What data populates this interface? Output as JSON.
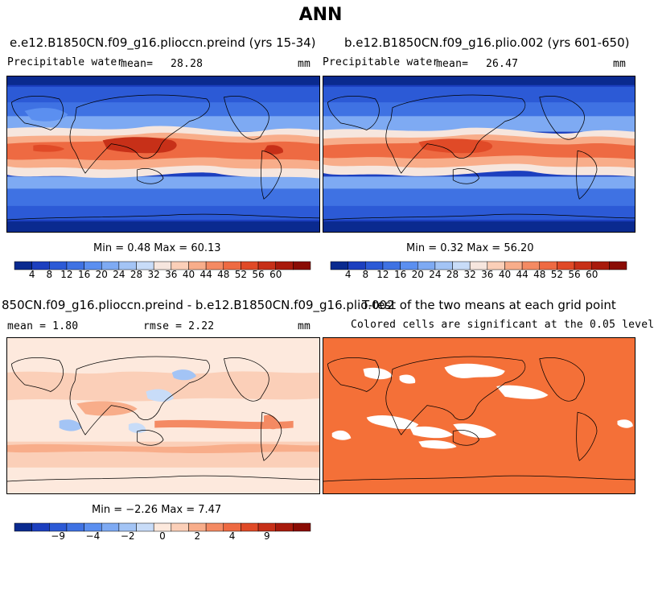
{
  "title": "ANN",
  "panels": [
    {
      "id": "p1",
      "title": "e.e12.B1850CN.f09_g16.pliocсn.preind (yrs 15-34)",
      "variable": "Precipitable water",
      "mean_label": "mean=",
      "mean_value": "28.28",
      "units": "mm",
      "minmax": "Min =   0.48 Max =  60.13"
    },
    {
      "id": "p2",
      "title": "b.e12.B1850CN.f09_g16.plio.002 (yrs 601-650)",
      "variable": "Precipitable water",
      "mean_label": "mean=",
      "mean_value": "26.47",
      "units": "mm",
      "minmax": "Min =   0.32 Max =  56.20"
    },
    {
      "id": "p3",
      "title": "850CN.f09_g16.pliocсn.preind - b.e12.B1850CN.f09_g16.plio.002",
      "mean_text": "mean =    1.80",
      "rmse_text": "rmse =    2.22",
      "units": "mm",
      "minmax": "Min = −2.26 Max =   7.47"
    },
    {
      "id": "p4",
      "title": "T-test of the two means at each grid point",
      "subtitle": "Colored cells are significant at the 0.05 level"
    }
  ],
  "colorbars": {
    "abs": {
      "colors": [
        "#0a2a8f",
        "#1c3fbf",
        "#2c5ad6",
        "#3f72e3",
        "#5b8ff0",
        "#7eaaf3",
        "#a3c4f5",
        "#c8dcf8",
        "#f6e6de",
        "#fbcfb8",
        "#f8ad8a",
        "#f48a63",
        "#ee6a42",
        "#e04a27",
        "#c73018",
        "#a81a0c",
        "#8a0c04"
      ],
      "ticks": [
        "4",
        "8",
        "12",
        "16",
        "20",
        "24",
        "28",
        "32",
        "36",
        "40",
        "44",
        "48",
        "52",
        "56",
        "60"
      ]
    },
    "diff": {
      "colors": [
        "#0a2a8f",
        "#1c3fbf",
        "#2c5ad6",
        "#3f72e3",
        "#5b8ff0",
        "#7eaaf3",
        "#a3c4f5",
        "#c8dcf8",
        "#fde9dd",
        "#fbcfb8",
        "#f8ad8a",
        "#f48a63",
        "#ee6a42",
        "#e04a27",
        "#c73018",
        "#a81a0c",
        "#8a0c04"
      ],
      "ticks": [
        "−9",
        "−4",
        "−2",
        "0",
        "2",
        "4",
        "9"
      ],
      "tick_positions": [
        1.5,
        3.5,
        5.5,
        7.5,
        9.5,
        11.5,
        13.5
      ]
    }
  },
  "chart_data": [
    {
      "type": "heatmap",
      "title": "e.e12.B1850CN.f09_g16.pliocсn.preind (yrs 15-34)",
      "variable": "Precipitable water",
      "units": "mm",
      "mean": 28.28,
      "min": 0.48,
      "max": 60.13,
      "levels": [
        4,
        8,
        12,
        16,
        20,
        24,
        28,
        32,
        36,
        40,
        44,
        48,
        52,
        56,
        60
      ]
    },
    {
      "type": "heatmap",
      "title": "b.e12.B1850CN.f09_g16.plio.002 (yrs 601-650)",
      "variable": "Precipitable water",
      "units": "mm",
      "mean": 26.47,
      "min": 0.32,
      "max": 56.2,
      "levels": [
        4,
        8,
        12,
        16,
        20,
        24,
        28,
        32,
        36,
        40,
        44,
        48,
        52,
        56,
        60
      ]
    },
    {
      "type": "heatmap",
      "title": "850CN.f09_g16.pliocсn.preind - b.e12.B1850CN.f09_g16.plio.002",
      "units": "mm",
      "mean": 1.8,
      "rmse": 2.22,
      "min": -2.26,
      "max": 7.47,
      "levels": [
        -9,
        -4,
        -2,
        0,
        2,
        4,
        9
      ]
    },
    {
      "type": "heatmap",
      "title": "T-test of the two means at each grid point",
      "note": "Colored cells are significant at the 0.05 level"
    }
  ]
}
